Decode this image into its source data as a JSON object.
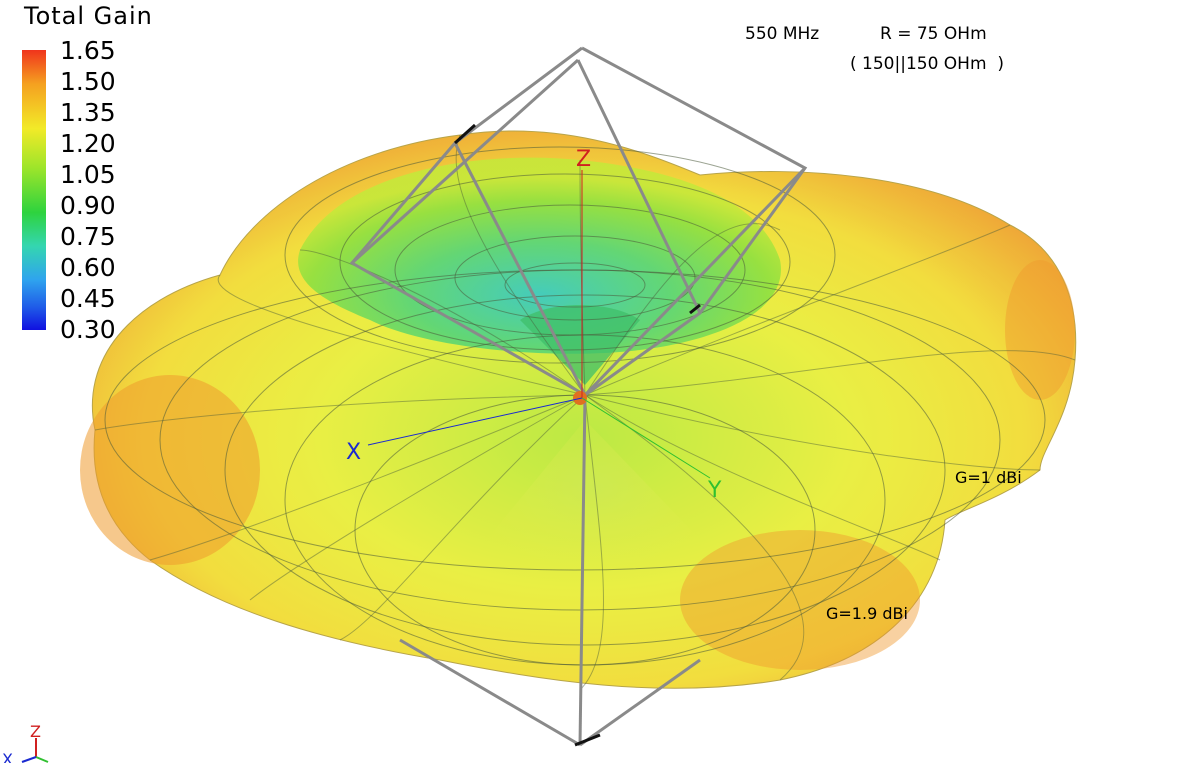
{
  "legend": {
    "title": "Total Gain",
    "ticks": [
      "1.65",
      "1.50",
      "1.35",
      "1.20",
      "1.05",
      "0.90",
      "0.75",
      "0.60",
      "0.45",
      "0.30"
    ]
  },
  "annotations": {
    "frequency": "550 MHz",
    "resistance": "R = 75 OHm",
    "parallel": "( 150||150 OHm  )",
    "gain_max": "G=1 dBi",
    "gain_peak": "G=1.9 dBi"
  },
  "axes": {
    "x": "X",
    "y": "Y",
    "z": "Z"
  },
  "colors": {
    "low": "#1010e0",
    "mid": "#2ed33e",
    "high": "#f0341c",
    "antenna_wire": "#8a8a8a"
  }
}
